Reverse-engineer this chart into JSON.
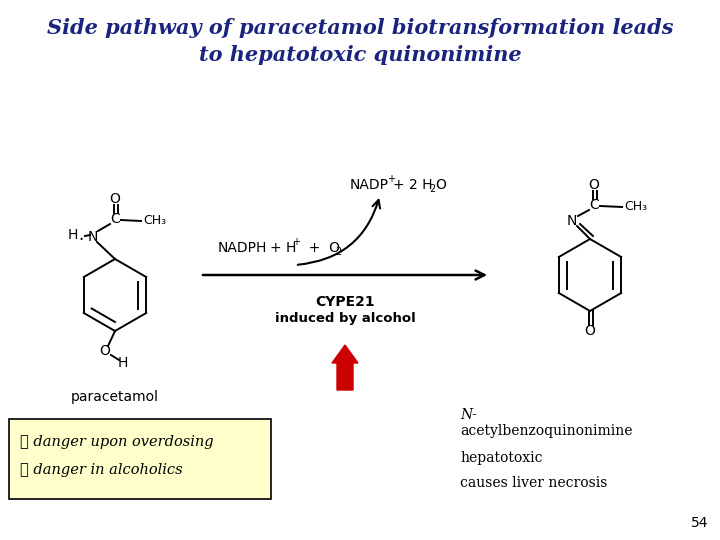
{
  "bg_color": "#ffffff",
  "title_line1": "Side pathway of paracetamol biotransformation leads",
  "title_line2": "to hepatotoxic quinonimine",
  "title_color": "#1a237e",
  "title_fontsize": 15,
  "cype_label": "CYPE21",
  "induced_label": "induced by alcohol",
  "paracetamol_label": "paracetamol",
  "n_label": "N-",
  "acetyl_label": "acetylbenzoquinonimine",
  "hepatotoxic_label": "hepatotoxic",
  "liver_label": "causes liver necrosis",
  "danger1": "☠ danger upon overdosing",
  "danger2": "☠ danger in alcoholics",
  "danger_box_color": "#ffffcc",
  "page_num": "54",
  "arrow_color": "#cc0000",
  "black": "#000000"
}
